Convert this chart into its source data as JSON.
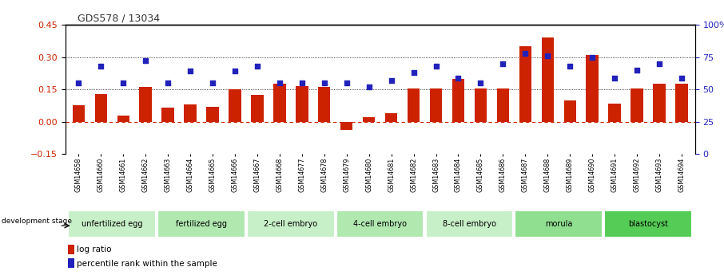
{
  "title": "GDS578 / 13034",
  "samples": [
    "GSM14658",
    "GSM14660",
    "GSM14661",
    "GSM14662",
    "GSM14663",
    "GSM14664",
    "GSM14665",
    "GSM14666",
    "GSM14667",
    "GSM14668",
    "GSM14677",
    "GSM14678",
    "GSM14679",
    "GSM14680",
    "GSM14681",
    "GSM14682",
    "GSM14683",
    "GSM14684",
    "GSM14685",
    "GSM14686",
    "GSM14687",
    "GSM14688",
    "GSM14689",
    "GSM14690",
    "GSM14691",
    "GSM14692",
    "GSM14693",
    "GSM14694"
  ],
  "log_ratio": [
    0.075,
    0.13,
    0.03,
    0.16,
    0.065,
    0.08,
    0.07,
    0.15,
    0.125,
    0.175,
    0.165,
    0.16,
    -0.04,
    0.02,
    0.04,
    0.155,
    0.155,
    0.2,
    0.155,
    0.155,
    0.35,
    0.39,
    0.1,
    0.31,
    0.085,
    0.155,
    0.175,
    0.175
  ],
  "percentile_rank": [
    55,
    68,
    55,
    72,
    55,
    64,
    55,
    64,
    68,
    55,
    55,
    55,
    55,
    52,
    57,
    63,
    68,
    59,
    55,
    70,
    78,
    76,
    68,
    75,
    59,
    65,
    70,
    59
  ],
  "stages": [
    {
      "label": "unfertilized egg",
      "start": 0,
      "end": 4,
      "color": "#c8f0c8"
    },
    {
      "label": "fertilized egg",
      "start": 4,
      "end": 8,
      "color": "#b0e8b0"
    },
    {
      "label": "2-cell embryo",
      "start": 8,
      "end": 12,
      "color": "#c8f0c8"
    },
    {
      "label": "4-cell embryo",
      "start": 12,
      "end": 16,
      "color": "#b0e8b0"
    },
    {
      "label": "8-cell embryo",
      "start": 16,
      "end": 20,
      "color": "#c8f0c8"
    },
    {
      "label": "morula",
      "start": 20,
      "end": 24,
      "color": "#90de90"
    },
    {
      "label": "blastocyst",
      "start": 24,
      "end": 28,
      "color": "#55cc55"
    }
  ],
  "bar_color": "#cc2200",
  "dot_color": "#2222bb",
  "ylim_left": [
    -0.15,
    0.45
  ],
  "ylim_right": [
    0,
    100
  ],
  "hlines": [
    0.15,
    0.3
  ],
  "zero_line_color": "#cc2200",
  "left_axis_color": "#cc2200",
  "right_axis_color": "#2222bb",
  "background_color": "#ffffff",
  "title_color": "#333333"
}
